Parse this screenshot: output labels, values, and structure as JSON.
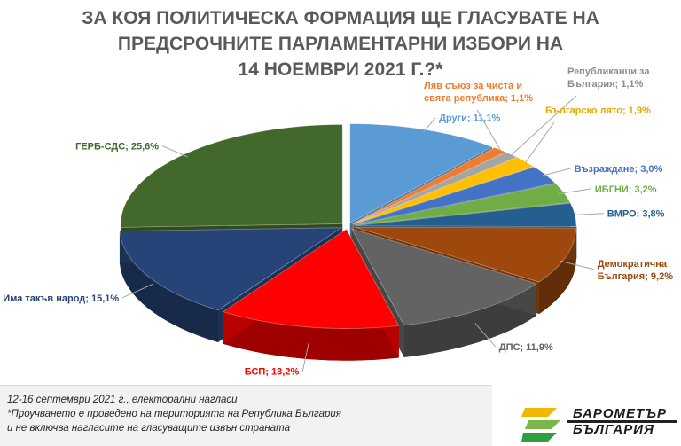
{
  "title": {
    "line1": "ЗА КОЯ ПОЛИТИЧЕСКА ФОРМАЦИЯ ЩЕ ГЛАСУВАТЕ НА",
    "line2": "ПРЕДСРОЧНИТЕ ПАРЛАМЕНТАРНИ ИЗБОРИ НА",
    "line3": "14 НОЕМВРИ 2021 Г.?*"
  },
  "chart_data": {
    "type": "pie",
    "style": "3d-exploded",
    "slices": [
      {
        "label": "Други",
        "value": 11.1,
        "text": "Други; 11,1%",
        "color": "#5b9bd5"
      },
      {
        "label": "Ляв съюз за чиста и свята република",
        "value": 1.1,
        "text_lines": [
          "Ляв съюз за чиста и",
          "свята република; 1,1%"
        ],
        "color": "#ed7d31"
      },
      {
        "label": "Републиканци за България",
        "value": 1.1,
        "text_lines": [
          "Републиканци за",
          "България; 1,1%"
        ],
        "color": "#a5a5a5"
      },
      {
        "label": "Българско лято",
        "value": 1.9,
        "text": "Българско лято; 1,9%",
        "color": "#ffc000"
      },
      {
        "label": "Възраждане",
        "value": 3.0,
        "text": "Възраждане; 3,0%",
        "color": "#4472c4"
      },
      {
        "label": "ИБГНИ",
        "value": 3.2,
        "text": "ИБГНИ; 3,2%",
        "color": "#70ad47"
      },
      {
        "label": "ВМРО",
        "value": 3.8,
        "text": "ВМРО; 3,8%",
        "color": "#255e91"
      },
      {
        "label": "Демократична България",
        "value": 9.2,
        "text_lines": [
          "Демократична",
          "България; 9,2%"
        ],
        "color": "#9e480e"
      },
      {
        "label": "ДПС",
        "value": 11.9,
        "text": "ДПС; 11,9%",
        "color": "#636363"
      },
      {
        "label": "БСП",
        "value": 13.2,
        "text": "БСП; 13,2%",
        "color": "#ff0000"
      },
      {
        "label": "Има такъв народ",
        "value": 15.1,
        "text": "Има такъв народ; 15,1%",
        "color": "#264478"
      },
      {
        "label": "ГЕРБ-СДС",
        "value": 25.6,
        "text": "ГЕРБ-СДС; 25,6%",
        "color": "#43682b"
      }
    ]
  },
  "footer": {
    "line1": "12-16 септември 2021 г., електорални нагласи",
    "line2": "*Проучването е проведено на територията на Република България",
    "line3": "и не включва нагласите на гласуващите извън страната"
  },
  "logo": {
    "line1": "БАРОМЕТЪР",
    "line2": "БЪЛГАРИЯ",
    "colors": [
      "#f2b705",
      "#7ab648",
      "#2e9e3f"
    ]
  }
}
